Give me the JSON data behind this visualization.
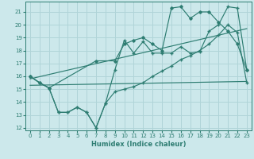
{
  "background_color": "#cce8eb",
  "grid_color": "#b0d4d8",
  "line_color": "#2e7d72",
  "xlabel": "Humidex (Indice chaleur)",
  "xlim": [
    -0.5,
    23.5
  ],
  "ylim": [
    11.8,
    21.8
  ],
  "yticks": [
    12,
    13,
    14,
    15,
    16,
    17,
    18,
    19,
    20,
    21
  ],
  "xticks": [
    0,
    1,
    2,
    3,
    4,
    5,
    6,
    7,
    8,
    9,
    10,
    11,
    12,
    13,
    14,
    15,
    16,
    17,
    18,
    19,
    20,
    21,
    22,
    23
  ],
  "line_lower_zigzag_x": [
    0,
    1,
    2,
    3,
    4,
    5,
    6,
    7,
    8,
    9,
    10,
    11,
    12,
    13,
    14,
    15,
    16,
    17,
    18,
    19,
    20,
    21,
    22,
    23
  ],
  "line_lower_zigzag_y": [
    16.0,
    15.5,
    15.1,
    13.2,
    13.2,
    13.6,
    13.2,
    12.0,
    13.9,
    14.8,
    15.0,
    15.2,
    15.5,
    16.0,
    16.4,
    16.8,
    17.3,
    17.6,
    18.0,
    18.5,
    19.2,
    20.0,
    19.4,
    15.5
  ],
  "line_upper_zigzag_x": [
    0,
    1,
    2,
    3,
    4,
    5,
    6,
    7,
    8,
    9,
    10,
    11,
    12,
    13,
    14,
    15,
    16,
    17,
    18,
    19,
    20,
    21,
    22,
    23
  ],
  "line_upper_zigzag_y": [
    16.0,
    15.5,
    15.1,
    13.2,
    13.2,
    13.6,
    13.2,
    12.0,
    13.9,
    16.5,
    18.8,
    17.8,
    18.7,
    17.8,
    17.8,
    17.8,
    18.3,
    17.8,
    17.9,
    19.5,
    20.0,
    21.4,
    21.3,
    16.5
  ],
  "line_top_x": [
    0,
    1,
    2,
    7,
    9,
    10,
    11,
    12,
    13,
    14,
    15,
    16,
    17,
    18,
    19,
    20,
    21,
    22,
    23
  ],
  "line_top_y": [
    16.0,
    15.5,
    15.1,
    17.2,
    17.2,
    18.5,
    18.8,
    19.0,
    18.5,
    18.0,
    21.3,
    21.4,
    20.5,
    21.0,
    21.0,
    20.2,
    19.5,
    18.5,
    16.5
  ],
  "line_trend1_x": [
    0,
    23
  ],
  "line_trend1_y": [
    15.8,
    19.7
  ],
  "line_trend2_x": [
    0,
    23
  ],
  "line_trend2_y": [
    15.3,
    15.6
  ]
}
